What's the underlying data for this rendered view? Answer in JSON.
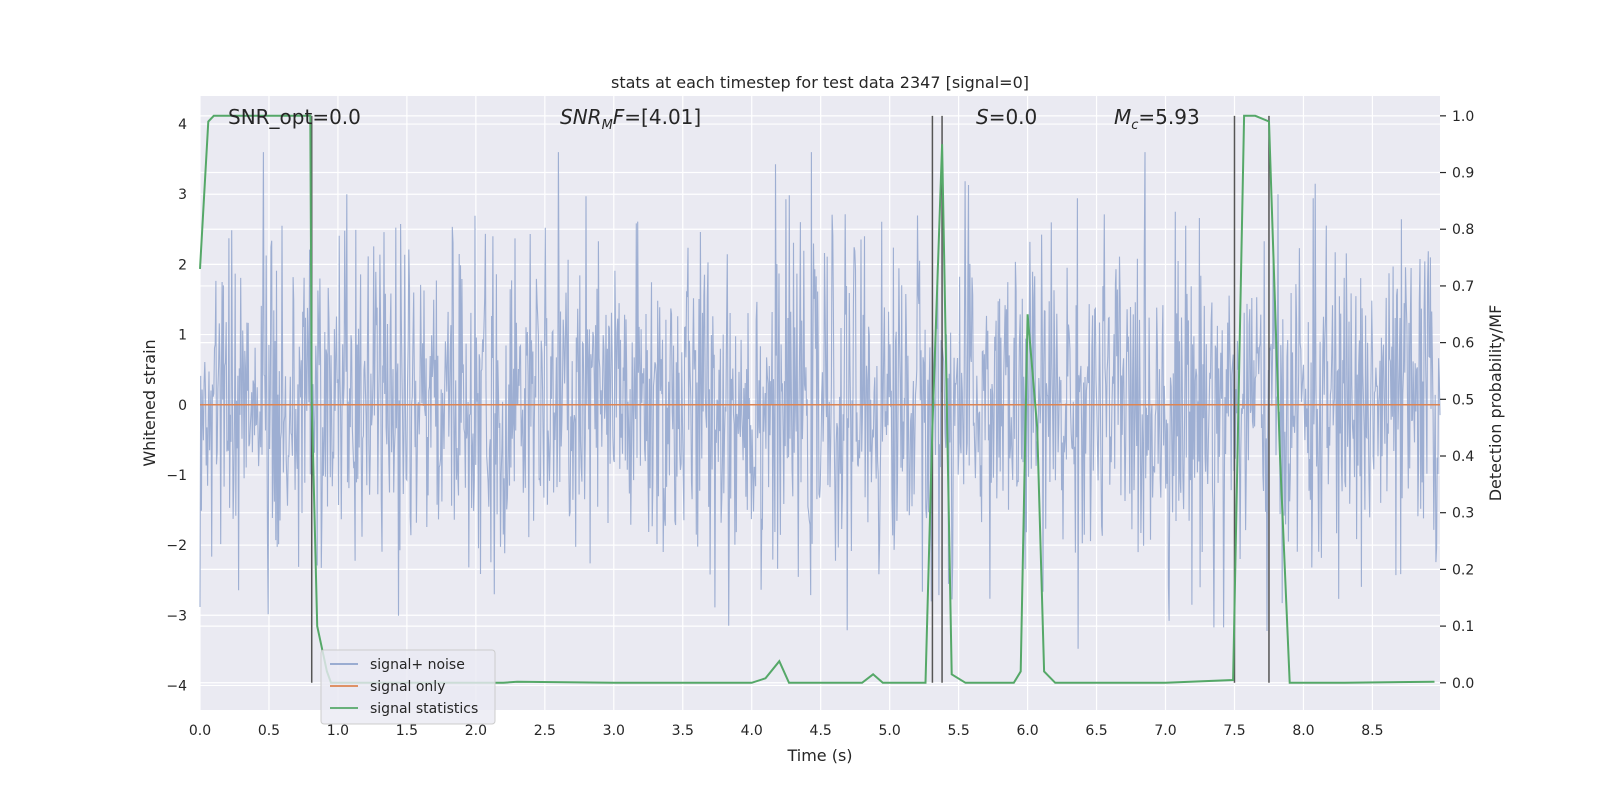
{
  "chart_data": {
    "type": "line",
    "title": "stats at each timestep for test data 2347 [signal=0]",
    "xlabel": "Time (s)",
    "ylabel": "Whitened strain",
    "y2label": "Detection probability/MF",
    "xlim": [
      0.0,
      8.99
    ],
    "ylim": [
      -4.35,
      4.4
    ],
    "y2lim": [
      -0.048,
      1.035
    ],
    "x_ticks": [
      0.0,
      0.5,
      1.0,
      1.5,
      2.0,
      2.5,
      3.0,
      3.5,
      4.0,
      4.5,
      5.0,
      5.5,
      6.0,
      6.5,
      7.0,
      7.5,
      8.0,
      8.5
    ],
    "x_tick_labels": [
      "0.0",
      "0.5",
      "1.0",
      "1.5",
      "2.0",
      "2.5",
      "3.0",
      "3.5",
      "4.0",
      "4.5",
      "5.0",
      "5.5",
      "6.0",
      "6.5",
      "7.0",
      "7.5",
      "8.0",
      "8.5"
    ],
    "y_ticks": [
      4,
      3,
      2,
      1,
      0,
      -1,
      -2,
      -3,
      -4
    ],
    "y_tick_labels": [
      "4",
      "3",
      "2",
      "1",
      "0",
      "−1",
      "−2",
      "−3",
      "−4"
    ],
    "y2_ticks": [
      1.0,
      0.9,
      0.8,
      0.7,
      0.6,
      0.5,
      0.4,
      0.3,
      0.2,
      0.1,
      0.0
    ],
    "y2_tick_labels": [
      "1.0",
      "0.9",
      "0.8",
      "0.7",
      "0.6",
      "0.5",
      "0.4",
      "0.3",
      "0.2",
      "0.1",
      "0.0"
    ],
    "grid": true,
    "legend_position": "lower-left",
    "annotations": [
      {
        "text": "SNR_opt=0.0",
        "x": 0.2
      },
      {
        "text": "SNR_MF=[4.01]",
        "x": 2.6
      },
      {
        "text": "S=0.0",
        "x": 5.6
      },
      {
        "text": "M_c=5.93",
        "x": 6.6
      }
    ],
    "vertical_lines": [
      {
        "x": 0.81,
        "y_from": 0.0,
        "y_to": 1.0
      },
      {
        "x": 5.31,
        "y_from": 0.0,
        "y_to": 1.0
      },
      {
        "x": 5.38,
        "y_from": 0.0,
        "y_to": 1.0
      },
      {
        "x": 7.5,
        "y_from": 0.0,
        "y_to": 1.0
      },
      {
        "x": 7.75,
        "y_from": 0.0,
        "y_to": 1.0
      }
    ],
    "series": [
      {
        "name": "signal+ noise",
        "color": "#8fa3cc",
        "axis": "left",
        "description": "whitened strain noise, amplitude roughly within ±3.5",
        "envelope": {
          "typical": 1.7,
          "peak": 3.6
        },
        "n_samples": 1800
      },
      {
        "name": "signal only",
        "color": "#dd8452",
        "axis": "left",
        "x": [
          0.0,
          8.99
        ],
        "y": [
          0.0,
          0.0
        ]
      },
      {
        "name": "signal statistics",
        "color": "#55a868",
        "axis": "right",
        "x": [
          0.0,
          0.06,
          0.1,
          0.7,
          0.8,
          0.81,
          0.85,
          0.92,
          0.95,
          1.0,
          1.1,
          2.0,
          2.2,
          2.3,
          3.0,
          4.0,
          4.1,
          4.2,
          4.27,
          4.5,
          4.8,
          4.88,
          4.95,
          5.0,
          5.26,
          5.31,
          5.38,
          5.45,
          5.55,
          5.9,
          5.95,
          6.0,
          6.07,
          6.12,
          6.2,
          7.0,
          7.49,
          7.57,
          7.65,
          7.75,
          7.83,
          7.9,
          8.3,
          8.95
        ],
        "y": [
          0.73,
          0.99,
          1.0,
          1.0,
          1.0,
          0.5,
          0.1,
          0.02,
          0.0,
          0.0,
          0.0,
          0.0,
          0.0,
          0.002,
          0.0,
          0.0,
          0.008,
          0.038,
          0.0,
          0.0,
          0.0,
          0.015,
          0.0,
          0.0,
          0.0,
          0.45,
          0.95,
          0.015,
          0.0,
          0.0,
          0.02,
          0.65,
          0.45,
          0.02,
          0.0,
          0.0,
          0.005,
          1.0,
          1.0,
          0.99,
          0.4,
          0.0,
          0.0,
          0.002
        ]
      }
    ]
  }
}
